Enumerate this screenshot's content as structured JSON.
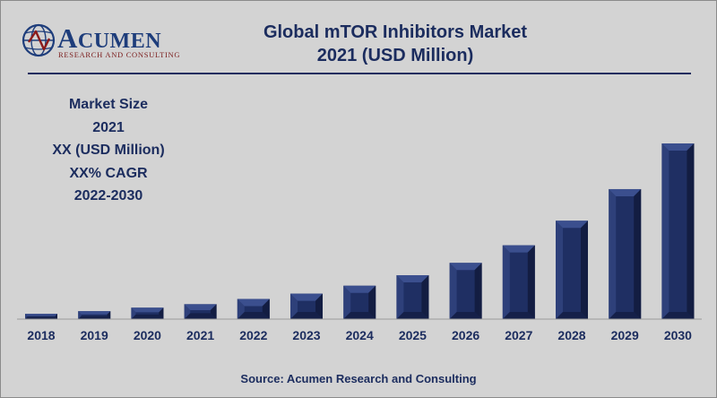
{
  "logo": {
    "wordmark_initial": "A",
    "wordmark_rest": "CUMEN",
    "tagline": "RESEARCH AND CONSULTING"
  },
  "header": {
    "title_line1": "Global mTOR Inhibitors Market",
    "title_line2": "2021 (USD Million)"
  },
  "summary": {
    "line1": "Market Size",
    "line2": "2021",
    "line3": "XX (USD Million)",
    "line4": "XX% CAGR",
    "line5": "2022-2030"
  },
  "footer": {
    "source": "Source: Acumen Research and Consulting"
  },
  "colors": {
    "background": "#d3d3d3",
    "title_text": "#1b2c5e",
    "bar_fill": "#1f2f63",
    "bar_bevel_light": "#3b4f8e",
    "bar_bevel_dark": "#131d42",
    "logo_blue": "#1e3d7b",
    "logo_red": "#8b1a1a"
  },
  "chart_data": {
    "type": "bar",
    "categories": [
      "2018",
      "2019",
      "2020",
      "2021",
      "2022",
      "2023",
      "2024",
      "2025",
      "2026",
      "2027",
      "2028",
      "2029",
      "2030"
    ],
    "values": [
      3,
      4.5,
      6.5,
      8.5,
      11.5,
      14.5,
      19,
      25,
      32,
      42,
      56,
      74,
      100
    ],
    "value_scale_note": "",
    "title": "",
    "xlabel": "",
    "ylabel": "",
    "ylim": [
      0,
      100
    ],
    "grid": false,
    "legend": "none"
  }
}
